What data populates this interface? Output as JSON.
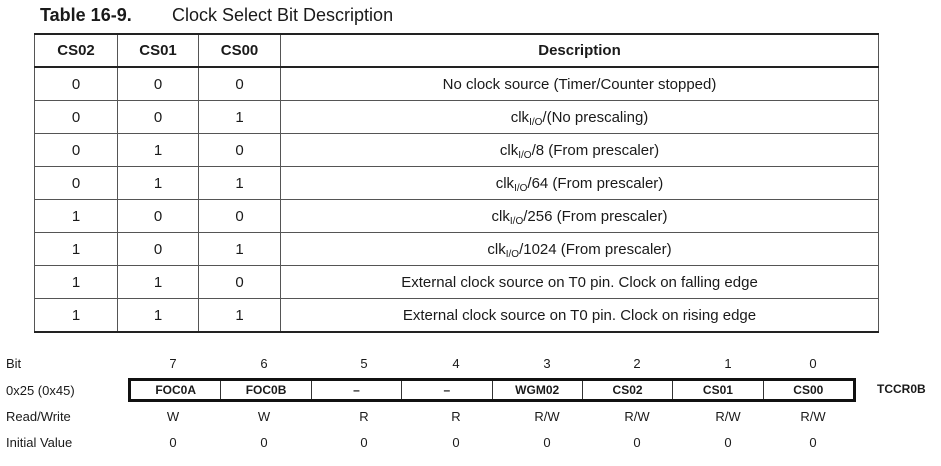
{
  "caption": {
    "number": "Table 16-9.",
    "title": "Clock Select Bit Description"
  },
  "table": {
    "headers": [
      "CS02",
      "CS01",
      "CS00",
      "Description"
    ],
    "rows": [
      {
        "cs02": "0",
        "cs01": "0",
        "cs00": "0",
        "desc_pre": "No clock source (Timer/Counter stopped)",
        "desc_sub": "",
        "desc_post": ""
      },
      {
        "cs02": "0",
        "cs01": "0",
        "cs00": "1",
        "desc_pre": "clk",
        "desc_sub": "I/O",
        "desc_post": "/(No prescaling)"
      },
      {
        "cs02": "0",
        "cs01": "1",
        "cs00": "0",
        "desc_pre": "clk",
        "desc_sub": "I/O",
        "desc_post": "/8 (From prescaler)"
      },
      {
        "cs02": "0",
        "cs01": "1",
        "cs00": "1",
        "desc_pre": "clk",
        "desc_sub": "I/O",
        "desc_post": "/64 (From prescaler)"
      },
      {
        "cs02": "1",
        "cs01": "0",
        "cs00": "0",
        "desc_pre": "clk",
        "desc_sub": "I/O",
        "desc_post": "/256 (From prescaler)"
      },
      {
        "cs02": "1",
        "cs01": "0",
        "cs00": "1",
        "desc_pre": "clk",
        "desc_sub": "I/O",
        "desc_post": "/1024 (From prescaler)"
      },
      {
        "cs02": "1",
        "cs01": "1",
        "cs00": "0",
        "desc_pre": "External clock source on T0 pin. Clock on falling edge",
        "desc_sub": "",
        "desc_post": ""
      },
      {
        "cs02": "1",
        "cs01": "1",
        "cs00": "1",
        "desc_pre": "External clock source on T0 pin. Clock on rising edge",
        "desc_sub": "",
        "desc_post": ""
      }
    ]
  },
  "register": {
    "labels": {
      "bit": "Bit",
      "address": "0x25 (0x45)",
      "rw": "Read/Write",
      "initial": "Initial Value"
    },
    "name": "TCCR0B",
    "bits": [
      "7",
      "6",
      "5",
      "4",
      "3",
      "2",
      "1",
      "0"
    ],
    "fields": [
      "FOC0A",
      "FOC0B",
      "–",
      "–",
      "WGM02",
      "CS02",
      "CS01",
      "CS00"
    ],
    "access": [
      "W",
      "W",
      "R",
      "R",
      "R/W",
      "R/W",
      "R/W",
      "R/W"
    ],
    "initial": [
      "0",
      "0",
      "0",
      "0",
      "0",
      "0",
      "0",
      "0"
    ]
  }
}
